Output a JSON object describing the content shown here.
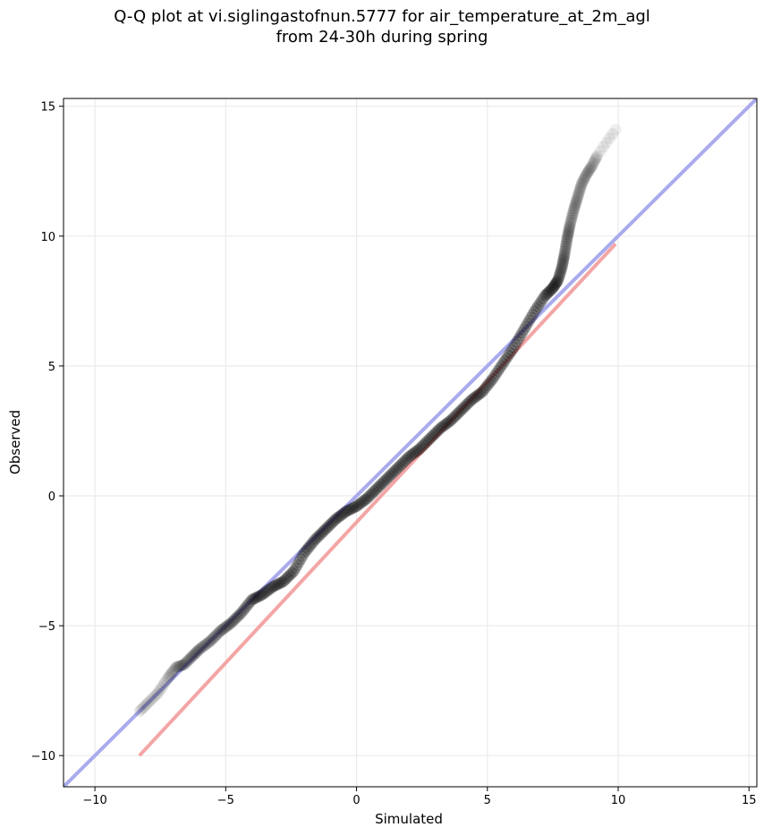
{
  "chart_data": {
    "type": "scatter",
    "title_line1": "Q-Q plot at vi.siglingastofnun.5777 for air_temperature_at_2m_agl",
    "title_line2": "from 24-30h during spring",
    "xlabel": "Simulated",
    "ylabel": "Observed",
    "xlim": [
      -11.2,
      15.3
    ],
    "ylim": [
      -11.2,
      15.3
    ],
    "xticks": [
      -10,
      -5,
      0,
      5,
      10,
      15
    ],
    "yticks": [
      -10,
      -5,
      0,
      5,
      10,
      15
    ],
    "tick_labels": [
      "−10",
      "−5",
      "0",
      "5",
      "10",
      "15"
    ],
    "grid": true,
    "reference_line": {
      "x": [
        -11.2,
        15.3
      ],
      "y": [
        -11.2,
        15.3
      ],
      "color": "#aaaaee"
    },
    "fit_line": {
      "x": [
        -8.3,
        9.9
      ],
      "y": [
        -10.0,
        9.7
      ],
      "color": "#f4a5a5"
    },
    "point_color": "#000000",
    "quantiles": {
      "x": [
        -8.3,
        -8.0,
        -7.6,
        -7.2,
        -6.9,
        -6.6,
        -6.3,
        -6.0,
        -5.6,
        -5.2,
        -4.8,
        -4.4,
        -4.0,
        -3.6,
        -3.2,
        -2.8,
        -2.4,
        -2.0,
        -1.6,
        -1.2,
        -0.8,
        -0.4,
        0.0,
        0.4,
        0.8,
        1.2,
        1.6,
        2.0,
        2.4,
        2.8,
        3.2,
        3.6,
        4.0,
        4.4,
        4.8,
        5.2,
        5.6,
        6.0,
        6.4,
        6.8,
        7.2,
        7.5,
        7.7,
        7.85,
        7.95,
        8.05,
        8.15,
        8.3,
        8.45,
        8.6,
        8.8,
        9.0,
        9.2,
        9.9
      ],
      "y": [
        -8.3,
        -8.0,
        -7.6,
        -7.0,
        -6.6,
        -6.5,
        -6.2,
        -5.9,
        -5.6,
        -5.2,
        -4.9,
        -4.5,
        -4.0,
        -3.8,
        -3.5,
        -3.3,
        -2.9,
        -2.2,
        -1.7,
        -1.3,
        -0.9,
        -0.6,
        -0.4,
        -0.1,
        0.3,
        0.7,
        1.1,
        1.5,
        1.8,
        2.2,
        2.6,
        2.9,
        3.3,
        3.7,
        4.0,
        4.5,
        5.1,
        5.7,
        6.4,
        7.1,
        7.7,
        8.0,
        8.3,
        8.8,
        9.3,
        9.9,
        10.4,
        11.0,
        11.5,
        12.0,
        12.4,
        12.7,
        13.1,
        14.1
      ]
    }
  }
}
